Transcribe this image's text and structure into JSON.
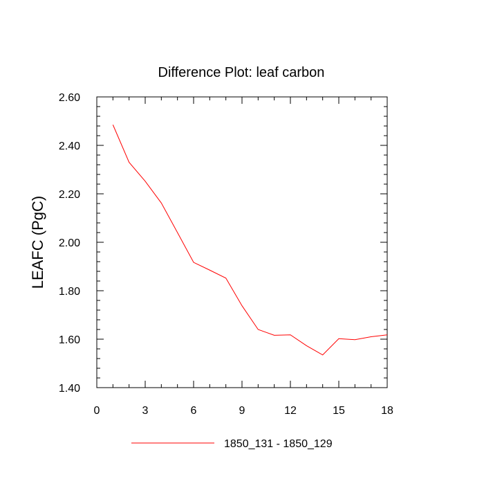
{
  "chart_data": {
    "type": "line",
    "title": "Difference Plot: leaf carbon",
    "xlabel": "",
    "ylabel": "LEAFC  (PgC)",
    "xlim": [
      0,
      18
    ],
    "ylim": [
      1.4,
      2.6
    ],
    "xticks": [
      0,
      3,
      6,
      9,
      12,
      15,
      18
    ],
    "xtick_labels": [
      "0",
      "3",
      "6",
      "9",
      "12",
      "15",
      "18"
    ],
    "yticks": [
      1.4,
      1.6,
      1.8,
      2.0,
      2.2,
      2.4,
      2.6
    ],
    "ytick_labels": [
      "1.40",
      "1.60",
      "1.80",
      "2.00",
      "2.20",
      "2.40",
      "2.60"
    ],
    "grid": false,
    "legend_position": "bottom-center",
    "series": [
      {
        "name": "1850_131 - 1850_129",
        "color": "#ff0000",
        "x": [
          1,
          2,
          3,
          4,
          5,
          6,
          7,
          8,
          9,
          10,
          11,
          12,
          13,
          14,
          15,
          16,
          17,
          18
        ],
        "y": [
          2.485,
          2.33,
          2.252,
          2.162,
          2.04,
          1.917,
          1.885,
          1.852,
          1.738,
          1.64,
          1.616,
          1.618,
          1.573,
          1.535,
          1.602,
          1.598,
          1.61,
          1.618
        ]
      }
    ]
  }
}
